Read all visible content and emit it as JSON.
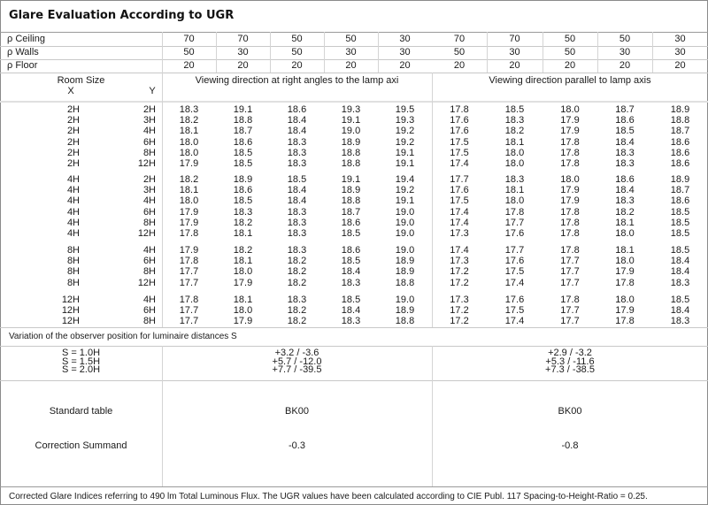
{
  "title": "Glare Evaluation According to UGR",
  "reflectances": [
    {
      "label": "ρ  Ceiling",
      "values": [
        "70",
        "70",
        "50",
        "50",
        "30",
        "70",
        "70",
        "50",
        "50",
        "30"
      ]
    },
    {
      "label": "ρ  Walls",
      "values": [
        "50",
        "30",
        "50",
        "30",
        "30",
        "50",
        "30",
        "50",
        "30",
        "30"
      ]
    },
    {
      "label": "ρ  Floor",
      "values": [
        "20",
        "20",
        "20",
        "20",
        "20",
        "20",
        "20",
        "20",
        "20",
        "20"
      ]
    }
  ],
  "header": {
    "room_size": "Room Size",
    "x": "X",
    "y": "Y",
    "perpendicular": "Viewing direction at right angles to the lamp axi",
    "parallel": "Viewing direction parallel to lamp axis"
  },
  "groups": [
    [
      {
        "x": "2H",
        "y": "2H",
        "v": [
          "18.3",
          "19.1",
          "18.6",
          "19.3",
          "19.5",
          "17.8",
          "18.5",
          "18.0",
          "18.7",
          "18.9"
        ]
      },
      {
        "x": "2H",
        "y": "3H",
        "v": [
          "18.2",
          "18.8",
          "18.4",
          "19.1",
          "19.3",
          "17.6",
          "18.3",
          "17.9",
          "18.6",
          "18.8"
        ]
      },
      {
        "x": "2H",
        "y": "4H",
        "v": [
          "18.1",
          "18.7",
          "18.4",
          "19.0",
          "19.2",
          "17.6",
          "18.2",
          "17.9",
          "18.5",
          "18.7"
        ]
      },
      {
        "x": "2H",
        "y": "6H",
        "v": [
          "18.0",
          "18.6",
          "18.3",
          "18.9",
          "19.2",
          "17.5",
          "18.1",
          "17.8",
          "18.4",
          "18.6"
        ]
      },
      {
        "x": "2H",
        "y": "8H",
        "v": [
          "18.0",
          "18.5",
          "18.3",
          "18.8",
          "19.1",
          "17.5",
          "18.0",
          "17.8",
          "18.3",
          "18.6"
        ]
      },
      {
        "x": "2H",
        "y": "12H",
        "v": [
          "17.9",
          "18.5",
          "18.3",
          "18.8",
          "19.1",
          "17.4",
          "18.0",
          "17.8",
          "18.3",
          "18.6"
        ]
      }
    ],
    [
      {
        "x": "4H",
        "y": "2H",
        "v": [
          "18.2",
          "18.9",
          "18.5",
          "19.1",
          "19.4",
          "17.7",
          "18.3",
          "18.0",
          "18.6",
          "18.9"
        ]
      },
      {
        "x": "4H",
        "y": "3H",
        "v": [
          "18.1",
          "18.6",
          "18.4",
          "18.9",
          "19.2",
          "17.6",
          "18.1",
          "17.9",
          "18.4",
          "18.7"
        ]
      },
      {
        "x": "4H",
        "y": "4H",
        "v": [
          "18.0",
          "18.5",
          "18.4",
          "18.8",
          "19.1",
          "17.5",
          "18.0",
          "17.9",
          "18.3",
          "18.6"
        ]
      },
      {
        "x": "4H",
        "y": "6H",
        "v": [
          "17.9",
          "18.3",
          "18.3",
          "18.7",
          "19.0",
          "17.4",
          "17.8",
          "17.8",
          "18.2",
          "18.5"
        ]
      },
      {
        "x": "4H",
        "y": "8H",
        "v": [
          "17.9",
          "18.2",
          "18.3",
          "18.6",
          "19.0",
          "17.4",
          "17.7",
          "17.8",
          "18.1",
          "18.5"
        ]
      },
      {
        "x": "4H",
        "y": "12H",
        "v": [
          "17.8",
          "18.1",
          "18.3",
          "18.5",
          "19.0",
          "17.3",
          "17.6",
          "17.8",
          "18.0",
          "18.5"
        ]
      }
    ],
    [
      {
        "x": "8H",
        "y": "4H",
        "v": [
          "17.9",
          "18.2",
          "18.3",
          "18.6",
          "19.0",
          "17.4",
          "17.7",
          "17.8",
          "18.1",
          "18.5"
        ]
      },
      {
        "x": "8H",
        "y": "6H",
        "v": [
          "17.8",
          "18.1",
          "18.2",
          "18.5",
          "18.9",
          "17.3",
          "17.6",
          "17.7",
          "18.0",
          "18.4"
        ]
      },
      {
        "x": "8H",
        "y": "8H",
        "v": [
          "17.7",
          "18.0",
          "18.2",
          "18.4",
          "18.9",
          "17.2",
          "17.5",
          "17.7",
          "17.9",
          "18.4"
        ]
      },
      {
        "x": "8H",
        "y": "12H",
        "v": [
          "17.7",
          "17.9",
          "18.2",
          "18.3",
          "18.8",
          "17.2",
          "17.4",
          "17.7",
          "17.8",
          "18.3"
        ]
      }
    ],
    [
      {
        "x": "12H",
        "y": "4H",
        "v": [
          "17.8",
          "18.1",
          "18.3",
          "18.5",
          "19.0",
          "17.3",
          "17.6",
          "17.8",
          "18.0",
          "18.5"
        ]
      },
      {
        "x": "12H",
        "y": "6H",
        "v": [
          "17.7",
          "18.0",
          "18.2",
          "18.4",
          "18.9",
          "17.2",
          "17.5",
          "17.7",
          "17.9",
          "18.4"
        ]
      },
      {
        "x": "12H",
        "y": "8H",
        "v": [
          "17.7",
          "17.9",
          "18.2",
          "18.3",
          "18.8",
          "17.2",
          "17.4",
          "17.7",
          "17.8",
          "18.3"
        ]
      }
    ]
  ],
  "variation": {
    "label": "Variation of the observer position for luminaire distances S",
    "spacings": [
      "S = 1.0H",
      "S = 1.5H",
      "S = 2.0H"
    ],
    "perpendicular": [
      "+3.2 / -3.6",
      "+5.7 / -12.0",
      "+7.7 / -39.5"
    ],
    "parallel": [
      "+2.9 / -3.2",
      "+5.3 / -11.6",
      "+7.3 / -38.5"
    ]
  },
  "standard_table": {
    "label": "Standard table",
    "perpendicular": "BK00",
    "parallel": "BK00"
  },
  "correction_summand": {
    "label": "Correction Summand",
    "perpendicular": "-0.3",
    "parallel": "-0.8"
  },
  "footer": "Corrected Glare Indices referring to 490 lm Total Luminous Flux. The UGR values have been calculated according to CIE Publ. 117    Spacing-to-Height-Ratio = 0.25."
}
